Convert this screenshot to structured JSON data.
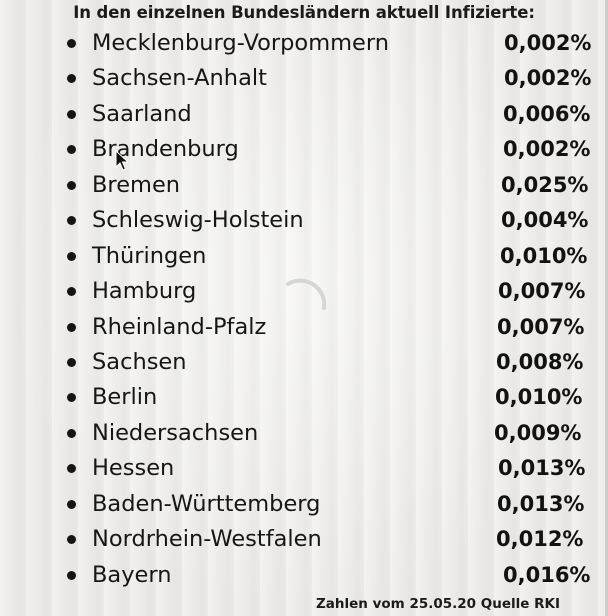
{
  "header": {
    "title": "In den einzelnen Bundesländern aktuell Infizierte:"
  },
  "states": [
    {
      "name": "Mecklenburg-Vorpommern",
      "value": "0,002%"
    },
    {
      "name": "Sachsen-Anhalt",
      "value": "0,002%"
    },
    {
      "name": "Saarland",
      "value": "0,006%"
    },
    {
      "name": "Brandenburg",
      "value": "0,002%"
    },
    {
      "name": "Bremen",
      "value": "0,025%"
    },
    {
      "name": "Schleswig-Holstein",
      "value": "0,004%"
    },
    {
      "name": "Thüringen",
      "value": "0,010%"
    },
    {
      "name": "Hamburg",
      "value": "0,007%"
    },
    {
      "name": "Rheinland-Pfalz",
      "value": "0,007%"
    },
    {
      "name": "Sachsen",
      "value": "0,008%"
    },
    {
      "name": "Berlin",
      "value": "0,010%"
    },
    {
      "name": "Niedersachsen",
      "value": "0,009%"
    },
    {
      "name": "Hessen",
      "value": "0,013%"
    },
    {
      "name": "Baden-Württemberg",
      "value": "0,013%"
    },
    {
      "name": "Nordrhein-Westfalen",
      "value": "0,012%"
    },
    {
      "name": "Bayern",
      "value": "0,016%"
    }
  ],
  "footer": {
    "source": "Zahlen vom 25.05.20 Quelle RKI"
  },
  "icons": {
    "bullet": "bullet-dot",
    "loading": "loading-spinner-icon",
    "cursor": "mouse-pointer-icon"
  },
  "colors": {
    "background": "#ecebe9",
    "text": "#111111",
    "spinner": "#dcdcdc"
  }
}
